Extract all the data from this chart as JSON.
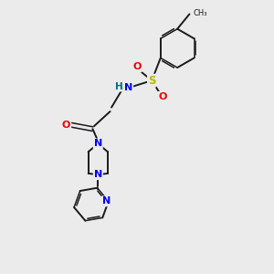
{
  "background_color": "#ebebeb",
  "bond_color": "#1a1a1a",
  "atom_colors": {
    "N": "#0000ee",
    "O": "#ee0000",
    "S": "#b8b800",
    "H": "#007070",
    "C": "#1a1a1a"
  },
  "figsize": [
    3.0,
    3.0
  ],
  "dpi": 100
}
